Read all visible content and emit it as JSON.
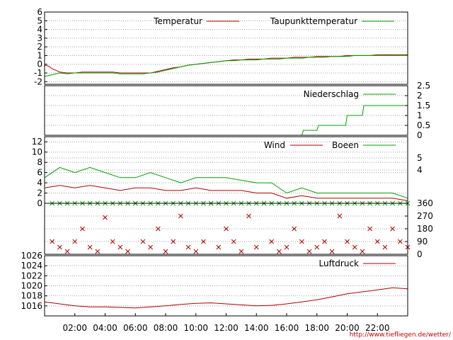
{
  "url": "http://www.tiefliegen.de/wetter/",
  "x_ticks": [
    "02:00",
    "04:00",
    "06:00",
    "08:00",
    "10:00",
    "12:00",
    "14:00",
    "16:00",
    "18:00",
    "20:00",
    "22:00"
  ],
  "colors": {
    "red": "#b00000",
    "green": "#00a000",
    "grid": "#a0a0a0"
  },
  "chart_data": [
    {
      "type": "line",
      "panel": "temperature",
      "ylim": [
        -2.3,
        6
      ],
      "y_ticks": [
        "6",
        "5",
        "4",
        "3",
        "2",
        "1",
        "0",
        "-1",
        "-2"
      ],
      "x": [
        0,
        0.25,
        0.5,
        1,
        1.5,
        2,
        2.5,
        3,
        3.5,
        4,
        4.5,
        5,
        5.5,
        6,
        6.5,
        7,
        7.5,
        8,
        8.5,
        9,
        9.5,
        10,
        10.5,
        11,
        11.5,
        12,
        12.5,
        13,
        13.5,
        14,
        14.5,
        15,
        15.5,
        16,
        16.5,
        17,
        17.5,
        18,
        18.5,
        19,
        19.5,
        20,
        20.5,
        21,
        21.5,
        22,
        22.5,
        23,
        23.5,
        24
      ],
      "series": [
        {
          "name": "Temperatur",
          "color": "red",
          "values": [
            -0.1,
            -0.2,
            -0.5,
            -0.9,
            -1.0,
            -1.0,
            -0.9,
            -0.9,
            -0.9,
            -0.9,
            -0.9,
            -1.0,
            -1.0,
            -1.0,
            -1.0,
            -1.0,
            -0.8,
            -0.6,
            -0.4,
            -0.3,
            -0.1,
            0.0,
            0.1,
            0.2,
            0.3,
            0.4,
            0.5,
            0.5,
            0.6,
            0.6,
            0.6,
            0.7,
            0.7,
            0.7,
            0.8,
            0.8,
            0.8,
            0.9,
            0.9,
            0.9,
            0.9,
            1.0,
            1.0,
            1.0,
            1.0,
            1.1,
            1.1,
            1.1,
            1.1,
            1.1
          ]
        },
        {
          "name": "Taupunkttemperatur",
          "color": "green",
          "values": [
            -1.4,
            -1.3,
            -1.2,
            -1.0,
            -1.1,
            -1.0,
            -1.0,
            -1.0,
            -1.0,
            -1.0,
            -1.0,
            -1.1,
            -1.1,
            -1.1,
            -1.1,
            -1.0,
            -0.9,
            -0.7,
            -0.5,
            -0.3,
            -0.1,
            0.0,
            0.1,
            0.2,
            0.3,
            0.4,
            0.4,
            0.5,
            0.5,
            0.5,
            0.6,
            0.6,
            0.6,
            0.7,
            0.7,
            0.7,
            0.8,
            0.8,
            0.8,
            0.9,
            0.9,
            0.9,
            1.0,
            1.0,
            1.0,
            1.0,
            1.0,
            1.0,
            1.0,
            1.0
          ]
        }
      ]
    },
    {
      "type": "line",
      "panel": "precipitation",
      "ylim": [
        0,
        2.5
      ],
      "y_ticks": [
        "2.5",
        "2",
        "1.5",
        "1",
        "0.5",
        "0"
      ],
      "x": [
        16.3,
        17.0,
        17.1,
        18.0,
        18.1,
        19.9,
        20.0,
        21.0,
        21.1,
        24.0
      ],
      "series": [
        {
          "name": "Niederschlag",
          "color": "green",
          "values": [
            0.0,
            0.0,
            0.25,
            0.25,
            0.5,
            0.5,
            1.0,
            1.0,
            1.5,
            1.5
          ]
        }
      ]
    },
    {
      "type": "line",
      "panel": "wind",
      "ylim": [
        0,
        13
      ],
      "y_ticks": [
        "12",
        "10",
        "8",
        "6",
        "4",
        "2",
        "0"
      ],
      "y2_ticks": [
        "5",
        "4"
      ],
      "x": [
        0,
        1,
        2,
        3,
        4,
        5,
        6,
        7,
        8,
        9,
        10,
        11,
        12,
        13,
        14,
        15,
        16,
        17,
        18,
        19,
        20,
        21,
        22,
        23,
        24
      ],
      "series": [
        {
          "name": "Wind",
          "color": "red",
          "values": [
            3,
            3.5,
            3,
            3.5,
            3,
            2.5,
            3,
            3,
            2.5,
            2.5,
            3,
            2.5,
            2.5,
            2.5,
            2,
            2,
            1,
            1.5,
            1,
            1,
            1,
            1,
            1,
            1,
            0.5
          ]
        },
        {
          "name": "Boeen",
          "color": "green",
          "values": [
            5,
            7,
            6,
            7,
            6,
            5,
            5,
            6,
            5,
            4,
            5,
            5,
            5,
            4.5,
            4,
            4,
            2,
            3,
            2,
            2,
            2,
            2,
            2,
            2,
            1
          ]
        }
      ]
    },
    {
      "type": "scatter",
      "panel": "wind_direction",
      "ylim": [
        0,
        360
      ],
      "y_ticks": [
        "360",
        "270",
        "180",
        "90",
        "0"
      ],
      "x": [
        0.5,
        1,
        1.5,
        2,
        2.5,
        3,
        3.5,
        4,
        4.5,
        5,
        5.5,
        6,
        6.5,
        7,
        7.5,
        8,
        8.5,
        9,
        9.5,
        10,
        10.5,
        11,
        11.5,
        12,
        12.5,
        13,
        13.5,
        14,
        14.5,
        15,
        15.5,
        16,
        16.5,
        17,
        17.5,
        18,
        18.5,
        19,
        19.5,
        20,
        20.5,
        21,
        21.5,
        22,
        22.5,
        23,
        23.5,
        24
      ],
      "series": [
        {
          "name": "",
          "color": "red",
          "values": [
            90,
            50,
            20,
            90,
            180,
            50,
            20,
            260,
            90,
            50,
            20,
            360,
            90,
            50,
            180,
            20,
            90,
            270,
            50,
            20,
            90,
            360,
            50,
            180,
            90,
            20,
            270,
            50,
            360,
            90,
            20,
            50,
            180,
            90,
            20,
            50,
            90,
            20,
            270,
            90,
            50,
            20,
            180,
            90,
            50,
            180,
            90,
            50
          ]
        },
        {
          "name": "",
          "color": "green",
          "values": [
            360,
            360,
            360,
            360,
            360,
            360,
            360,
            360,
            360,
            360,
            360,
            360,
            360,
            360,
            360,
            360,
            360,
            360,
            360,
            360,
            360,
            360,
            360,
            360,
            360,
            360,
            360,
            360,
            360,
            360,
            360,
            360,
            360,
            360,
            360,
            360,
            360,
            360,
            360,
            360,
            360,
            360,
            360,
            360,
            360,
            360,
            360,
            360
          ]
        }
      ]
    },
    {
      "type": "line",
      "panel": "pressure",
      "ylim": [
        1014,
        1026
      ],
      "y_ticks": [
        "1026",
        "1024",
        "1022",
        "1020",
        "1018",
        "1016"
      ],
      "x": [
        0,
        1,
        2,
        3,
        4,
        5,
        6,
        7,
        8,
        9,
        10,
        11,
        12,
        13,
        14,
        15,
        16,
        17,
        18,
        19,
        20,
        21,
        22,
        23,
        24
      ],
      "series": [
        {
          "name": "Luftdruck",
          "color": "red",
          "values": [
            1016.8,
            1016.4,
            1016.0,
            1015.8,
            1015.8,
            1015.7,
            1015.6,
            1015.8,
            1016.0,
            1016.3,
            1016.5,
            1016.6,
            1016.4,
            1016.2,
            1016.0,
            1016.1,
            1016.4,
            1016.8,
            1017.2,
            1017.8,
            1018.4,
            1018.8,
            1019.2,
            1019.6,
            1019.4
          ]
        }
      ]
    }
  ]
}
